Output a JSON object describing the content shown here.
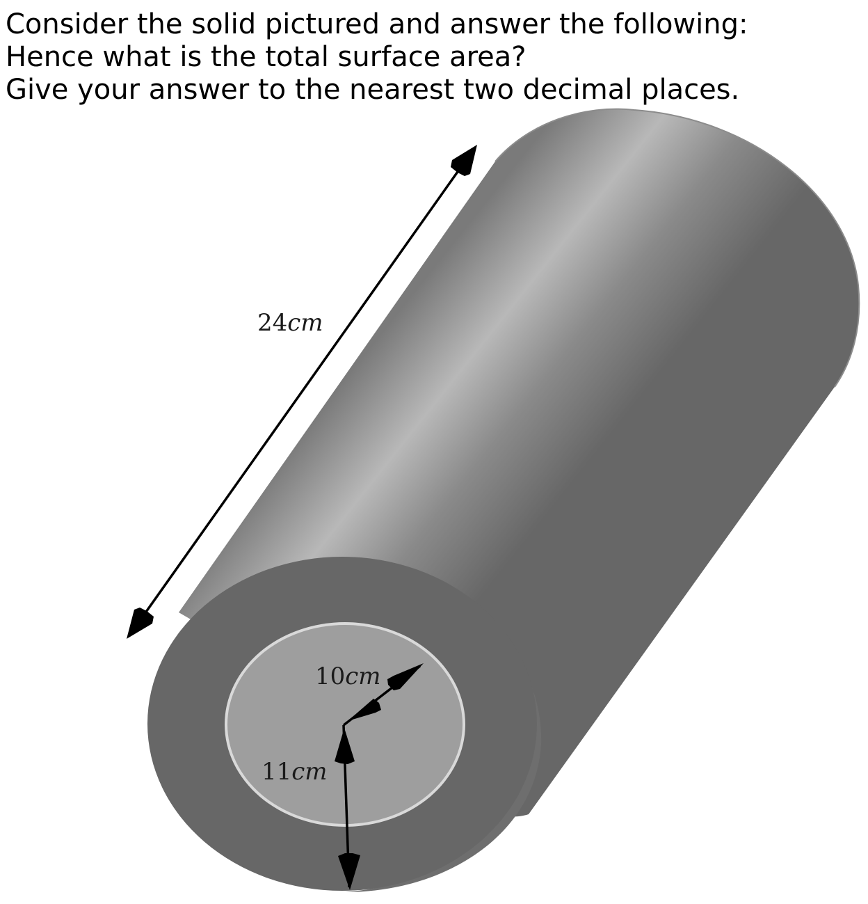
{
  "question": {
    "lines": [
      "Consider the solid pictured and answer the following:",
      "Hence what is the total surface area?",
      "Give your answer to the nearest two decimal places."
    ]
  },
  "figure": {
    "labels": {
      "length": {
        "number": "24",
        "unit": "cm"
      },
      "inner_radius": {
        "number": "10",
        "unit": "cm"
      },
      "outer_radius": {
        "number": "11",
        "unit": "cm"
      }
    },
    "colors": {
      "face": "#676767",
      "hole": "#9e9e9e",
      "hole_rim": "#d9d9d9",
      "body_dark": "#676767",
      "body_highlight": "#b8b8b8",
      "arrow": "#000000"
    }
  }
}
